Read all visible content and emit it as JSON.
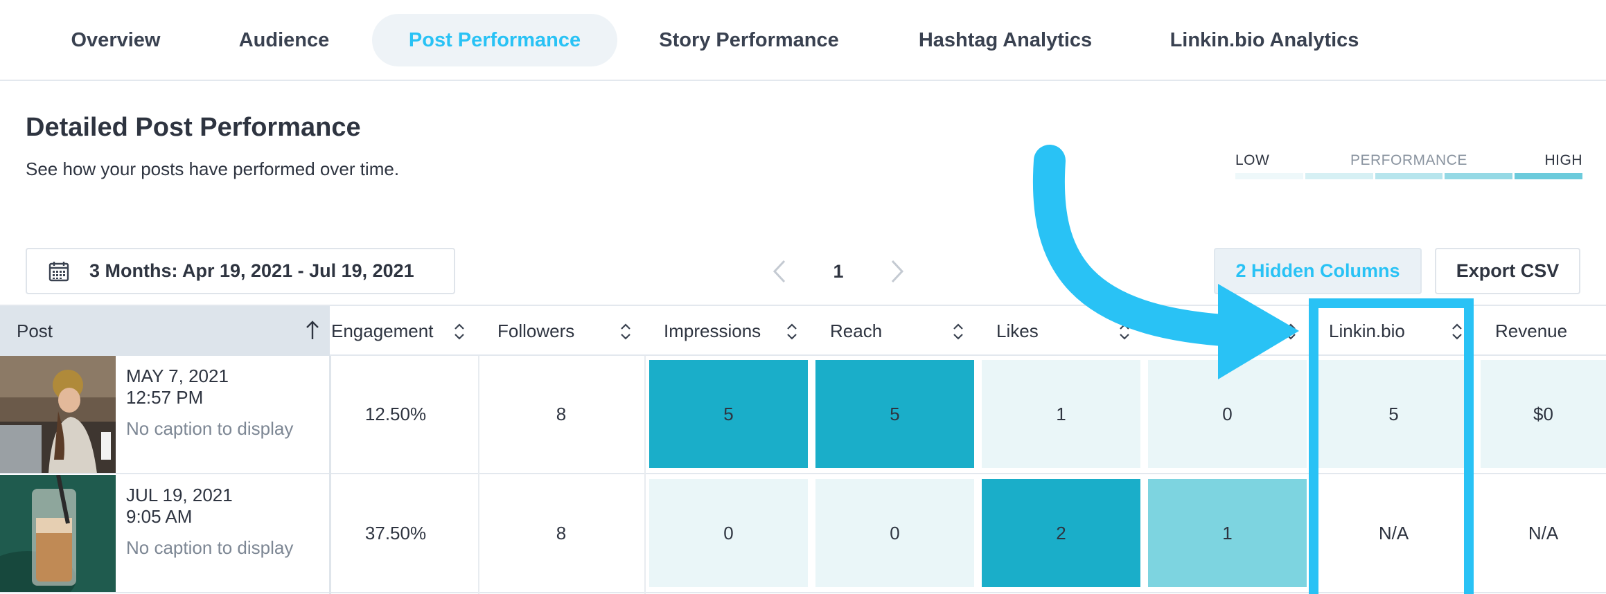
{
  "tabs": [
    {
      "label": "Overview",
      "active": false
    },
    {
      "label": "Audience",
      "active": false
    },
    {
      "label": "Post Performance",
      "active": true
    },
    {
      "label": "Story Performance",
      "active": false
    },
    {
      "label": "Hashtag Analytics",
      "active": false
    },
    {
      "label": "Linkin.bio Analytics",
      "active": false
    }
  ],
  "header": {
    "title": "Detailed Post Performance",
    "subtitle": "See how your posts have performed over time."
  },
  "legend": {
    "low": "LOW",
    "mid": "PERFORMANCE",
    "high": "HIGH",
    "scale_colors": [
      "#eef8fa",
      "#d6f0f4",
      "#b7e5ed",
      "#95d9e5",
      "#6ccbdc"
    ]
  },
  "controls": {
    "date_range": "3 Months: Apr 19, 2021 - Jul 19, 2021",
    "page": "1",
    "hidden_columns": "2 Hidden Columns",
    "export": "Export CSV"
  },
  "table": {
    "columns": [
      "Post",
      "Engagement",
      "Followers",
      "Impressions",
      "Reach",
      "Likes",
      "",
      "Linkin.bio",
      "Revenue"
    ],
    "rows": [
      {
        "date": "MAY 7, 2021",
        "time": "12:57 PM",
        "caption": "No caption to display",
        "cells": [
          "12.50%",
          "8",
          "5",
          "5",
          "1",
          "0",
          "5",
          "$0"
        ]
      },
      {
        "date": "JUL 19, 2021",
        "time": "9:05 AM",
        "caption": "No caption to display",
        "cells": [
          "37.50%",
          "8",
          "0",
          "0",
          "2",
          "1",
          "N/A",
          "N/A"
        ]
      }
    ]
  },
  "colors": {
    "accent": "#29c2f5",
    "heat_high": "#1aaec9",
    "heat_mid": "#7dd4e0",
    "heat_low": "#eaf6f8"
  }
}
